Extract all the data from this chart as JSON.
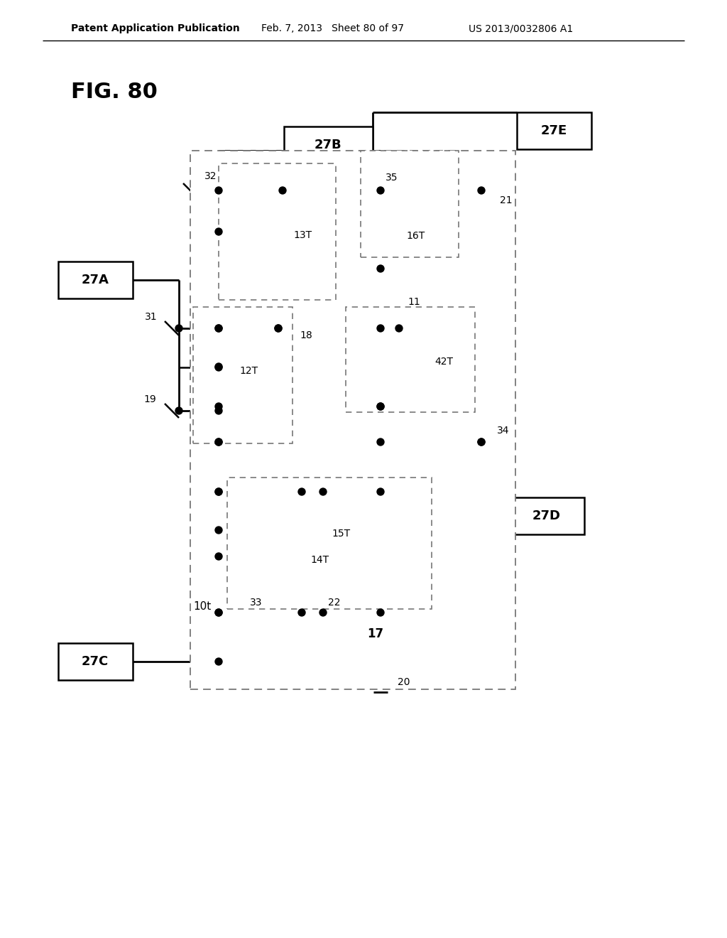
{
  "bg_color": "#ffffff",
  "fig_label": "FIG. 80",
  "header_left": "Patent Application Publication",
  "header_mid": "Feb. 7, 2013   Sheet 80 of 97",
  "header_right": "US 2013/0032806 A1"
}
